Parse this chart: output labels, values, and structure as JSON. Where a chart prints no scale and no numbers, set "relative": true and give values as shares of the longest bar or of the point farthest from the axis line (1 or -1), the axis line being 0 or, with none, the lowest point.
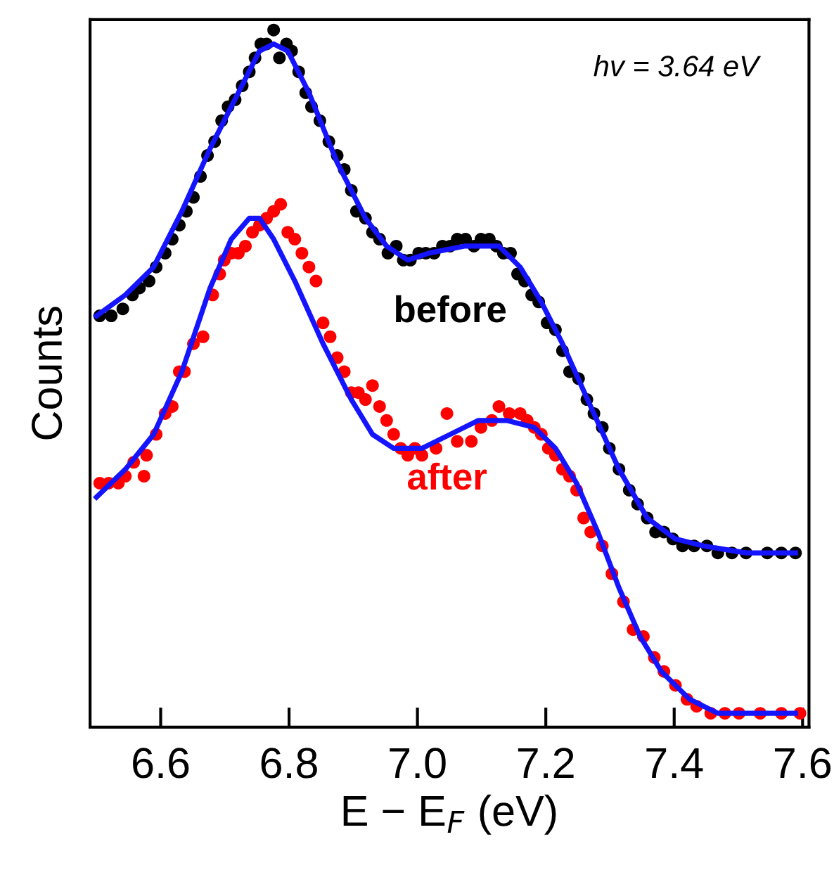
{
  "chart_data": {
    "type": "scatter",
    "relative": true,
    "xlabel": "E − E$_{F}$ (eV)",
    "ylabel": "Counts",
    "xlim": [
      6.49,
      7.61
    ],
    "xticks": [
      6.6,
      6.8,
      {
        "value": 7.0,
        "label": "7.0"
      },
      7.2,
      7.4,
      7.6
    ],
    "annotations": [
      "hv = 3.64 eV"
    ],
    "legend": false,
    "grid": false,
    "series": [
      {
        "name": "before",
        "marker": "circle",
        "color": "#000000",
        "x": [
          6.505,
          6.523,
          6.541,
          6.556,
          6.567,
          6.582,
          6.593,
          6.607,
          6.618,
          6.629,
          6.64,
          6.651,
          6.662,
          6.673,
          6.684,
          6.695,
          6.705,
          6.716,
          6.727,
          6.738,
          6.747,
          6.756,
          6.765,
          6.776,
          6.785,
          6.796,
          6.804,
          6.815,
          6.826,
          6.835,
          6.848,
          6.862,
          6.875,
          6.886,
          6.897,
          6.905,
          6.919,
          6.93,
          6.941,
          6.954,
          6.967,
          6.978,
          6.989,
          7.002,
          7.013,
          7.026,
          7.039,
          7.051,
          7.062,
          7.075,
          7.088,
          7.099,
          7.112,
          7.123,
          7.134,
          7.145,
          7.156,
          7.167,
          7.178,
          7.189,
          7.202,
          7.215,
          7.226,
          7.237,
          7.251,
          7.264,
          7.275,
          7.288,
          7.299,
          7.314,
          7.33,
          7.343,
          7.358,
          7.371,
          7.384,
          7.398,
          7.413,
          7.431,
          7.451,
          7.468,
          7.49,
          7.512,
          7.545,
          7.567,
          7.589
        ],
        "values": [
          0.59,
          0.59,
          0.6,
          0.62,
          0.63,
          0.64,
          0.66,
          0.68,
          0.7,
          0.72,
          0.74,
          0.76,
          0.79,
          0.82,
          0.84,
          0.87,
          0.89,
          0.9,
          0.92,
          0.94,
          0.96,
          0.98,
          0.98,
          1.0,
          0.96,
          0.98,
          0.97,
          0.94,
          0.91,
          0.89,
          0.87,
          0.84,
          0.82,
          0.8,
          0.77,
          0.74,
          0.73,
          0.71,
          0.7,
          0.68,
          0.69,
          0.67,
          0.67,
          0.68,
          0.68,
          0.68,
          0.69,
          0.69,
          0.7,
          0.7,
          0.69,
          0.7,
          0.7,
          0.69,
          0.68,
          0.68,
          0.65,
          0.64,
          0.62,
          0.61,
          0.58,
          0.57,
          0.54,
          0.51,
          0.5,
          0.47,
          0.45,
          0.43,
          0.4,
          0.37,
          0.34,
          0.32,
          0.3,
          0.28,
          0.28,
          0.27,
          0.26,
          0.26,
          0.26,
          0.25,
          0.25,
          0.25,
          0.25,
          0.25,
          0.25
        ]
      },
      {
        "type": "line",
        "color": "#1414ff",
        "x": [
          6.5,
          6.545,
          6.589,
          6.633,
          6.677,
          6.721,
          6.754,
          6.776,
          6.798,
          6.831,
          6.875,
          6.919,
          6.952,
          6.985,
          7.018,
          7.073,
          7.127,
          7.16,
          7.193,
          7.226,
          7.27,
          7.314,
          7.358,
          7.402,
          7.446,
          7.512,
          7.589
        ],
        "values": [
          0.59,
          0.62,
          0.66,
          0.74,
          0.83,
          0.91,
          0.97,
          0.98,
          0.97,
          0.91,
          0.81,
          0.73,
          0.69,
          0.67,
          0.68,
          0.69,
          0.69,
          0.66,
          0.61,
          0.55,
          0.46,
          0.37,
          0.3,
          0.27,
          0.26,
          0.25,
          0.25
        ]
      },
      {
        "name": "after",
        "marker": "circle",
        "color": "#ff0000",
        "x": [
          6.505,
          6.519,
          6.534,
          6.545,
          6.558,
          6.574,
          6.578,
          6.593,
          6.607,
          6.618,
          6.629,
          6.637,
          6.651,
          6.666,
          6.681,
          6.692,
          6.699,
          6.71,
          6.721,
          6.732,
          6.743,
          6.754,
          6.765,
          6.776,
          6.787,
          6.798,
          6.809,
          6.82,
          6.831,
          6.842,
          6.853,
          6.864,
          6.875,
          6.886,
          6.897,
          6.908,
          6.919,
          6.93,
          6.941,
          6.952,
          6.963,
          6.974,
          6.985,
          6.996,
          7.007,
          7.029,
          7.046,
          7.062,
          7.084,
          7.099,
          7.116,
          7.127,
          7.143,
          7.16,
          7.171,
          7.182,
          7.193,
          7.204,
          7.215,
          7.226,
          7.237,
          7.248,
          7.259,
          7.27,
          7.288,
          7.303,
          7.321,
          7.336,
          7.352,
          7.369,
          7.384,
          7.402,
          7.42,
          7.435,
          7.457,
          7.479,
          7.501,
          7.534,
          7.567,
          7.596
        ],
        "values": [
          0.35,
          0.35,
          0.35,
          0.36,
          0.38,
          0.36,
          0.39,
          0.42,
          0.45,
          0.46,
          0.51,
          0.51,
          0.55,
          0.56,
          0.62,
          0.65,
          0.67,
          0.68,
          0.68,
          0.69,
          0.71,
          0.72,
          0.73,
          0.74,
          0.75,
          0.71,
          0.7,
          0.68,
          0.66,
          0.64,
          0.58,
          0.56,
          0.53,
          0.51,
          0.48,
          0.48,
          0.47,
          0.49,
          0.46,
          0.44,
          0.42,
          0.4,
          0.39,
          0.4,
          0.39,
          0.4,
          0.45,
          0.41,
          0.41,
          0.43,
          0.44,
          0.46,
          0.45,
          0.45,
          0.44,
          0.43,
          0.42,
          0.4,
          0.39,
          0.37,
          0.36,
          0.34,
          0.3,
          0.28,
          0.26,
          0.22,
          0.18,
          0.14,
          0.13,
          0.1,
          0.08,
          0.06,
          0.04,
          0.03,
          0.02,
          0.02,
          0.02,
          0.02,
          0.02,
          0.02
        ]
      },
      {
        "type": "line",
        "color": "#1414ff",
        "x": [
          6.5,
          6.545,
          6.589,
          6.633,
          6.677,
          6.71,
          6.738,
          6.754,
          6.776,
          6.809,
          6.853,
          6.897,
          6.93,
          6.963,
          7.007,
          7.051,
          7.095,
          7.139,
          7.182,
          7.215,
          7.248,
          7.281,
          7.314,
          7.347,
          7.38,
          7.424,
          7.468,
          7.534,
          7.589
        ],
        "values": [
          0.33,
          0.37,
          0.42,
          0.51,
          0.63,
          0.7,
          0.73,
          0.73,
          0.7,
          0.64,
          0.55,
          0.47,
          0.42,
          0.4,
          0.4,
          0.42,
          0.44,
          0.44,
          0.43,
          0.4,
          0.35,
          0.28,
          0.2,
          0.13,
          0.08,
          0.04,
          0.02,
          0.02,
          0.02
        ]
      }
    ]
  }
}
